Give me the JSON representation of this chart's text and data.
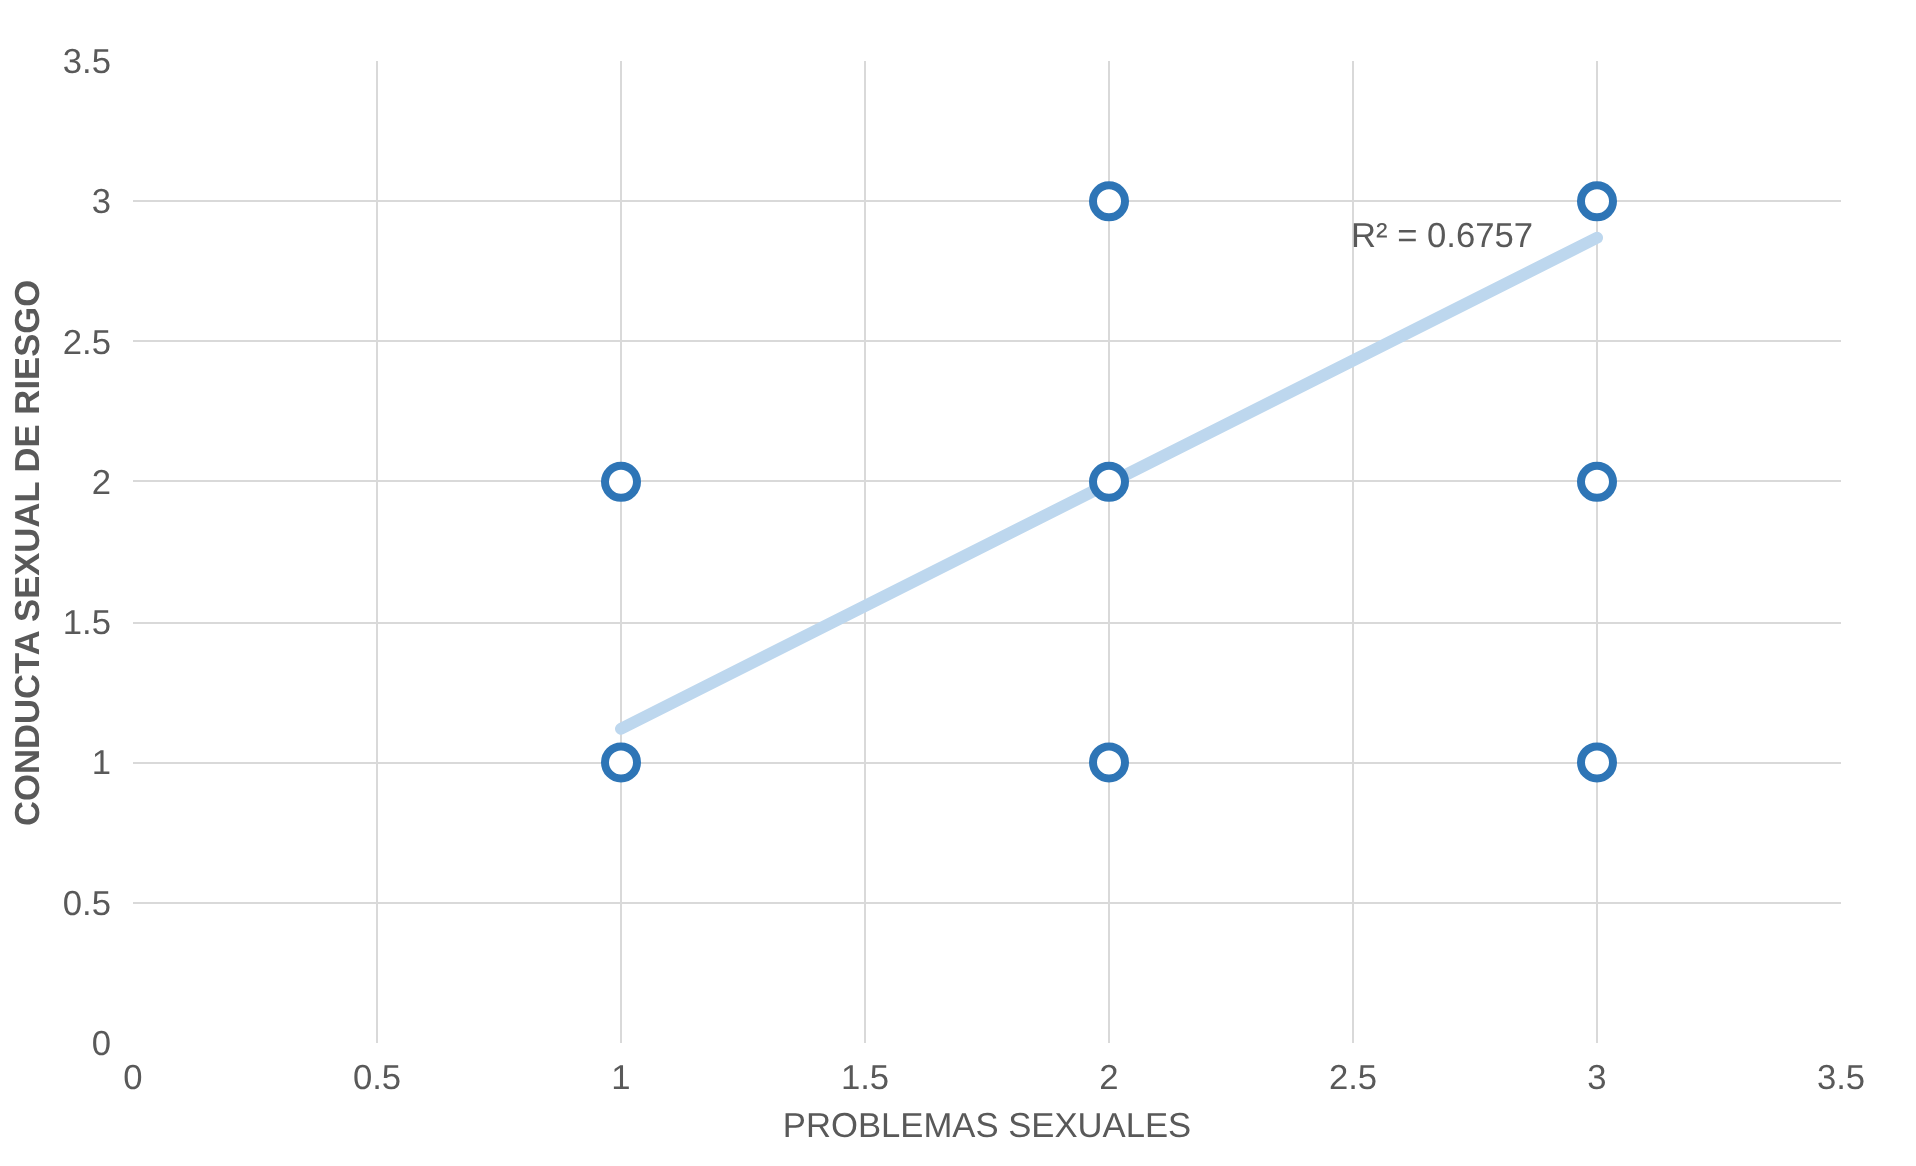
{
  "chart_data": {
    "type": "scatter",
    "xlabel": "PROBLEMAS SEXUALES",
    "ylabel": "CONDUCTA SEXUAL DE RIESGO",
    "xlim": [
      0,
      3.5
    ],
    "xticks": [
      0,
      0.5,
      1,
      1.5,
      2,
      2.5,
      3,
      3.5
    ],
    "ylim": [
      0,
      3.5
    ],
    "yticks": [
      0,
      0.5,
      1,
      1.5,
      2,
      2.5,
      3,
      3.5
    ],
    "grid": true,
    "marker": "circle",
    "series": [
      {
        "color": "#2e75b6",
        "x": [
          1,
          1,
          2,
          2,
          2,
          3,
          3,
          3
        ],
        "values": [
          1,
          2,
          1,
          2,
          3,
          1,
          2,
          3
        ]
      },
      {
        "type": "line",
        "marker": "none",
        "color": "#bdd7ee",
        "x": [
          1,
          3
        ],
        "values": [
          1.12,
          2.87
        ]
      }
    ],
    "annotations": [
      "R² = 0.6757"
    ]
  }
}
